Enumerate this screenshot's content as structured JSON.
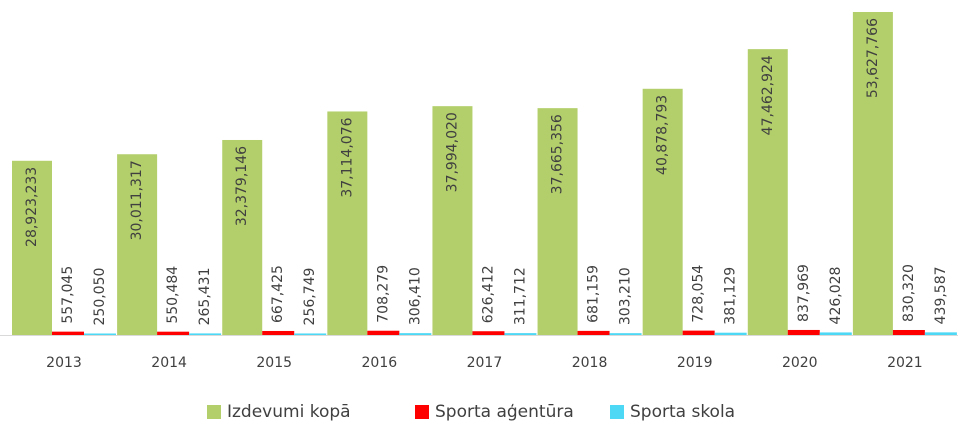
{
  "chart_data": {
    "type": "bar",
    "categories": [
      "2013",
      "2014",
      "2015",
      "2016",
      "2017",
      "2018",
      "2019",
      "2020",
      "2021"
    ],
    "series": [
      {
        "name": "Izdevumi kopā",
        "color": "#b3cf6b",
        "values": [
          28923233,
          30011317,
          32379146,
          37114076,
          37994020,
          37665356,
          40878793,
          47462924,
          53627766
        ],
        "value_labels": [
          "28,923,233",
          "30,011,317",
          "32,379,146",
          "37,114,076",
          "37,994,020",
          "37,665,356",
          "40,878,793",
          "47,462,924",
          "53,627,766"
        ]
      },
      {
        "name": "Sporta aģentūra",
        "color": "#ff0000",
        "values": [
          557045,
          550484,
          667425,
          708279,
          626412,
          681159,
          728054,
          837969,
          830320
        ],
        "value_labels": [
          "557,045",
          "550,484",
          "667,425",
          "708,279",
          "626,412",
          "681,159",
          "728,054",
          "837,969",
          "830,320"
        ]
      },
      {
        "name": "Sporta skola",
        "color": "#4dd8f5",
        "values": [
          250050,
          265431,
          256749,
          306410,
          311712,
          303210,
          381129,
          426028,
          439587
        ],
        "value_labels": [
          "250,050",
          "265,431",
          "256,749",
          "306,410",
          "311,712",
          "303,210",
          "381,129",
          "426,028",
          "439,587"
        ]
      }
    ],
    "legend": "bottom"
  }
}
